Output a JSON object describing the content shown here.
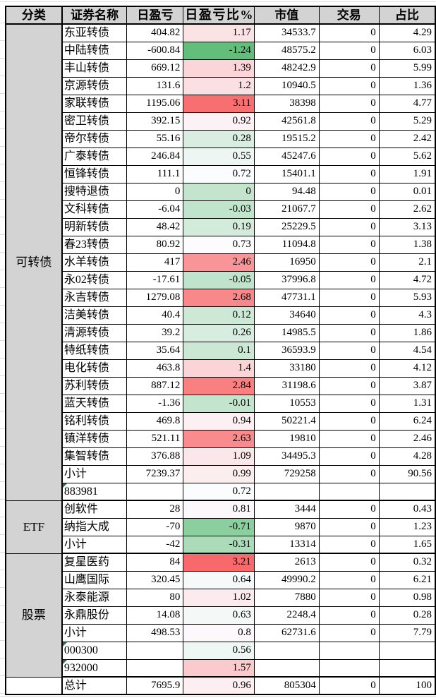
{
  "styles": {
    "header_bg": "#d3d3d3",
    "category_bg": "#d3d3d3",
    "grid_color": "#000000",
    "indicator_color": "#217346",
    "color_scale": {
      "min": -1.24,
      "mid": 0.73,
      "max": 3.21,
      "min_color": "#63BE7B",
      "mid_color": "#FCFCFF",
      "max_color": "#F8696B"
    }
  },
  "table": {
    "columns": [
      {
        "key": "category",
        "label": "分类"
      },
      {
        "key": "name",
        "label": "证券名称"
      },
      {
        "key": "pnl",
        "label": "日盈亏"
      },
      {
        "key": "pct",
        "label": "日盈亏比%"
      },
      {
        "key": "mv",
        "label": "市值"
      },
      {
        "key": "trade",
        "label": "交易"
      },
      {
        "key": "ratio",
        "label": "占比"
      }
    ],
    "sections": [
      {
        "category": "可转债",
        "rows": [
          {
            "name": "东亚转债",
            "pnl": "404.82",
            "pct": "1.17",
            "mv": "34533.7",
            "trade": "0",
            "ratio": "4.29"
          },
          {
            "name": "中陆转债",
            "pnl": "-600.84",
            "pct": "-1.24",
            "mv": "48575.2",
            "trade": "0",
            "ratio": "6.03"
          },
          {
            "name": "丰山转债",
            "pnl": "669.12",
            "pct": "1.39",
            "mv": "48242.9",
            "trade": "0",
            "ratio": "5.99"
          },
          {
            "name": "京源转债",
            "pnl": "131.6",
            "pct": "1.2",
            "mv": "10940.5",
            "trade": "0",
            "ratio": "1.36"
          },
          {
            "name": "家联转债",
            "pnl": "1195.06",
            "pct": "3.11",
            "mv": "38398",
            "trade": "0",
            "ratio": "4.77"
          },
          {
            "name": "密卫转债",
            "pnl": "392.15",
            "pct": "0.92",
            "mv": "42561.8",
            "trade": "0",
            "ratio": "5.29"
          },
          {
            "name": "帝尔转债",
            "pnl": "55.16",
            "pct": "0.28",
            "mv": "19515.2",
            "trade": "0",
            "ratio": "2.42"
          },
          {
            "name": "广泰转债",
            "pnl": "246.84",
            "pct": "0.55",
            "mv": "45247.6",
            "trade": "0",
            "ratio": "5.62"
          },
          {
            "name": "恒锋转债",
            "pnl": "111.1",
            "pct": "0.72",
            "mv": "15401.1",
            "trade": "0",
            "ratio": "1.91"
          },
          {
            "name": "搜特退债",
            "pnl": "0",
            "pct": "0",
            "mv": "94.48",
            "trade": "0",
            "ratio": "0.01"
          },
          {
            "name": "文科转债",
            "pnl": "-6.04",
            "pct": "-0.03",
            "mv": "21067.7",
            "trade": "0",
            "ratio": "2.62"
          },
          {
            "name": "明新转债",
            "pnl": "48.42",
            "pct": "0.19",
            "mv": "25229.5",
            "trade": "0",
            "ratio": "3.13"
          },
          {
            "name": "春23转债",
            "pnl": "80.92",
            "pct": "0.73",
            "mv": "11094.8",
            "trade": "0",
            "ratio": "1.38"
          },
          {
            "name": "水羊转债",
            "pnl": "417",
            "pct": "2.46",
            "mv": "16950",
            "trade": "0",
            "ratio": "2.1"
          },
          {
            "name": "永02转债",
            "pnl": "-17.61",
            "pct": "-0.05",
            "mv": "37996.8",
            "trade": "0",
            "ratio": "4.72"
          },
          {
            "name": "永吉转债",
            "pnl": "1279.08",
            "pct": "2.68",
            "mv": "47731.1",
            "trade": "0",
            "ratio": "5.93"
          },
          {
            "name": "洁美转债",
            "pnl": "40.4",
            "pct": "0.12",
            "mv": "34640",
            "trade": "0",
            "ratio": "4.3"
          },
          {
            "name": "清源转债",
            "pnl": "39.2",
            "pct": "0.26",
            "mv": "14985.5",
            "trade": "0",
            "ratio": "1.86"
          },
          {
            "name": "特纸转债",
            "pnl": "35.64",
            "pct": "0.1",
            "mv": "36593.9",
            "trade": "0",
            "ratio": "4.54"
          },
          {
            "name": "电化转债",
            "pnl": "463.8",
            "pct": "1.4",
            "mv": "33180",
            "trade": "0",
            "ratio": "4.12"
          },
          {
            "name": "苏利转债",
            "pnl": "887.12",
            "pct": "2.84",
            "mv": "31198.6",
            "trade": "0",
            "ratio": "3.87"
          },
          {
            "name": "蓝天转债",
            "pnl": "-1.36",
            "pct": "-0.01",
            "mv": "10553",
            "trade": "0",
            "ratio": "1.31"
          },
          {
            "name": "铭利转债",
            "pnl": "469.8",
            "pct": "0.94",
            "mv": "50221.4",
            "trade": "0",
            "ratio": "6.24"
          },
          {
            "name": "镇洋转债",
            "pnl": "521.11",
            "pct": "2.63",
            "mv": "19810",
            "trade": "0",
            "ratio": "2.46"
          },
          {
            "name": "集智转债",
            "pnl": "376.88",
            "pct": "1.09",
            "mv": "34495.3",
            "trade": "0",
            "ratio": "4.28"
          },
          {
            "name": "小计",
            "pnl": "7239.37",
            "pct": "0.99",
            "mv": "729258",
            "trade": "0",
            "ratio": "90.56"
          },
          {
            "name": "883981",
            "pnl": "",
            "pct": "0.72",
            "mv": "",
            "trade": "",
            "ratio": "",
            "indicator": true
          }
        ]
      },
      {
        "category": "ETF",
        "rows": [
          {
            "name": "创软件",
            "pnl": "28",
            "pct": "0.81",
            "mv": "3444",
            "trade": "0",
            "ratio": "0.43"
          },
          {
            "name": "纳指大成",
            "pnl": "-70",
            "pct": "-0.71",
            "mv": "9870",
            "trade": "0",
            "ratio": "1.23"
          },
          {
            "name": "小计",
            "pnl": "-42",
            "pct": "-0.31",
            "mv": "13314",
            "trade": "0",
            "ratio": "1.65"
          }
        ]
      },
      {
        "category": "股票",
        "rows": [
          {
            "name": "复星医药",
            "pnl": "84",
            "pct": "3.21",
            "mv": "2613",
            "trade": "0",
            "ratio": "0.32"
          },
          {
            "name": "山鹰国际",
            "pnl": "320.45",
            "pct": "0.64",
            "mv": "49990.2",
            "trade": "0",
            "ratio": "6.21"
          },
          {
            "name": "永泰能源",
            "pnl": "80",
            "pct": "1.02",
            "mv": "7880",
            "trade": "0",
            "ratio": "0.98"
          },
          {
            "name": "永鼎股份",
            "pnl": "14.08",
            "pct": "0.63",
            "mv": "2248.4",
            "trade": "0",
            "ratio": "0.28"
          },
          {
            "name": "小计",
            "pnl": "498.53",
            "pct": "0.8",
            "mv": "62731.6",
            "trade": "0",
            "ratio": "7.79"
          },
          {
            "name": "000300",
            "pnl": "",
            "pct": "0.56",
            "mv": "",
            "trade": "",
            "ratio": "",
            "indicator": true
          },
          {
            "name": "932000",
            "pnl": "",
            "pct": "1.57",
            "mv": "",
            "trade": "",
            "ratio": "",
            "indicator": true
          }
        ]
      },
      {
        "category": null,
        "rows": [
          {
            "name": "总计",
            "pnl": "7695.9",
            "pct": "0.96",
            "mv": "805304",
            "trade": "0",
            "ratio": "100"
          }
        ]
      }
    ]
  }
}
